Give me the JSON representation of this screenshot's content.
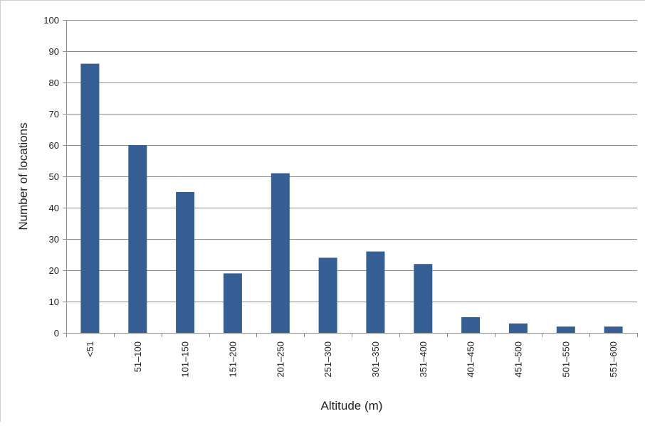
{
  "chart_data": {
    "type": "bar",
    "title": "",
    "xlabel": "Altitude (m)",
    "ylabel": "Number of locations",
    "categories": [
      "<51",
      "51–100",
      "101–150",
      "151–200",
      "201–250",
      "251–300",
      "301–350",
      "351–400",
      "401–450",
      "451–500",
      "501–550",
      "551–600"
    ],
    "values": [
      86,
      60,
      45,
      19,
      51,
      24,
      26,
      22,
      5,
      3,
      2,
      2
    ],
    "ylim": [
      0,
      100
    ],
    "yticks": [
      0,
      10,
      20,
      30,
      40,
      50,
      60,
      70,
      80,
      90,
      100
    ],
    "grid": true,
    "legend": "none",
    "colors": {
      "bar": "#355f94",
      "grid": "#8c8c8c",
      "axis": "#8c8c8c"
    }
  }
}
